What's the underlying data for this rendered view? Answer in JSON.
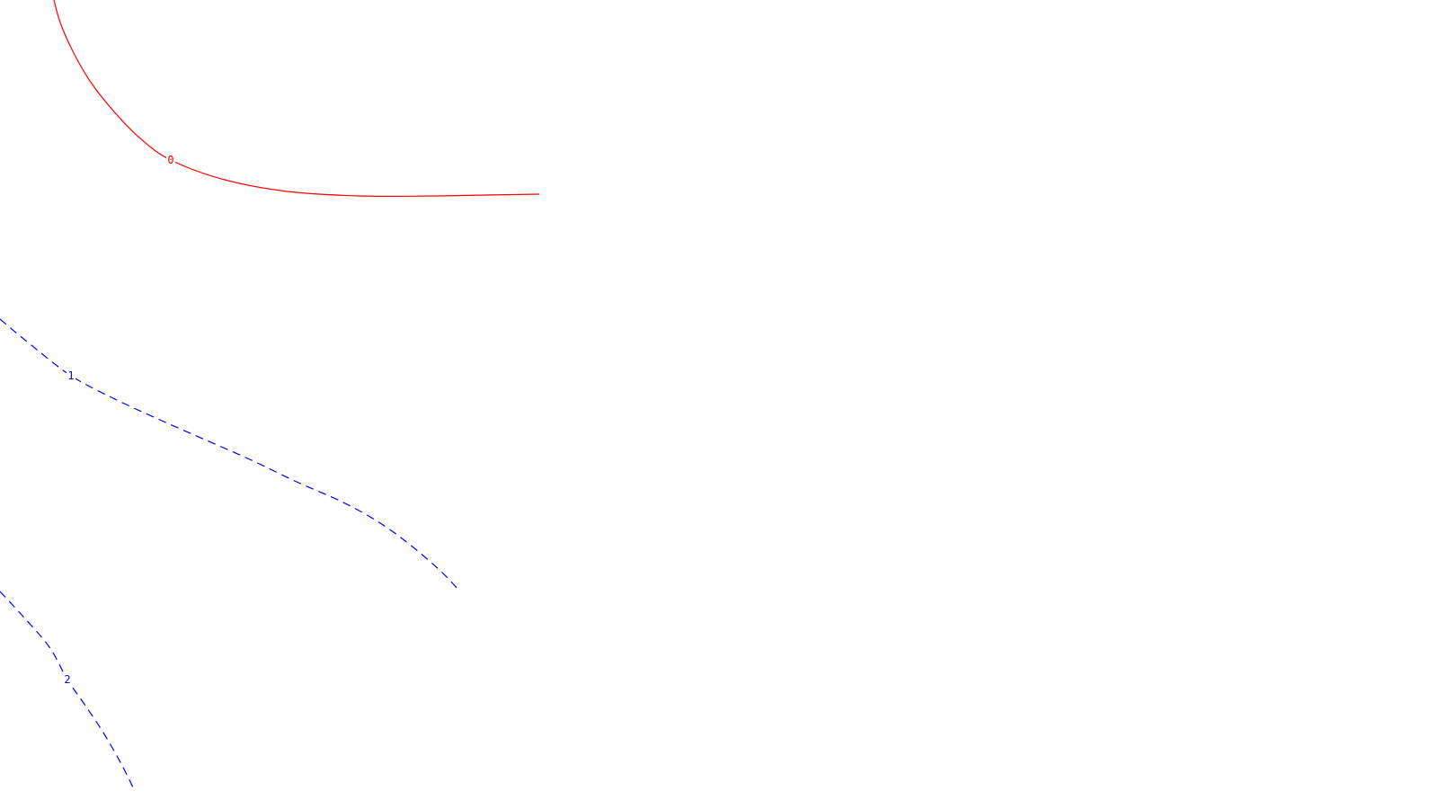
{
  "chart_data": {
    "type": "line",
    "title": "",
    "xlabel": "",
    "ylabel": "",
    "grid": false,
    "legend": "none",
    "series": [
      {
        "label": "0",
        "color": "#ff0000",
        "dash": "solid",
        "points": [
          [
            60,
            0
          ],
          [
            67,
            25
          ],
          [
            80,
            55
          ],
          [
            100,
            90
          ],
          [
            125,
            122
          ],
          [
            155,
            153
          ],
          [
            190,
            178
          ],
          [
            250,
            200
          ],
          [
            320,
            213
          ],
          [
            400,
            218
          ],
          [
            480,
            218
          ],
          [
            540,
            217
          ],
          [
            600,
            216
          ]
        ],
        "label_at": [
          190,
          178
        ]
      },
      {
        "label": "1",
        "color": "#0000ff",
        "dash": "dashed",
        "points": [
          [
            0,
            355
          ],
          [
            30,
            380
          ],
          [
            79,
            418
          ],
          [
            130,
            445
          ],
          [
            180,
            468
          ],
          [
            230,
            490
          ],
          [
            280,
            512
          ],
          [
            330,
            536
          ],
          [
            380,
            558
          ],
          [
            420,
            580
          ],
          [
            455,
            605
          ],
          [
            490,
            635
          ],
          [
            510,
            656
          ]
        ],
        "label_at": [
          79,
          418
        ]
      },
      {
        "label": "2",
        "color": "#0000ff",
        "dash": "dashed",
        "points": [
          [
            0,
            658
          ],
          [
            25,
            685
          ],
          [
            55,
            720
          ],
          [
            75,
            756
          ],
          [
            95,
            785
          ],
          [
            115,
            815
          ],
          [
            135,
            850
          ],
          [
            150,
            880
          ]
        ],
        "label_at": [
          75,
          756
        ]
      }
    ]
  }
}
